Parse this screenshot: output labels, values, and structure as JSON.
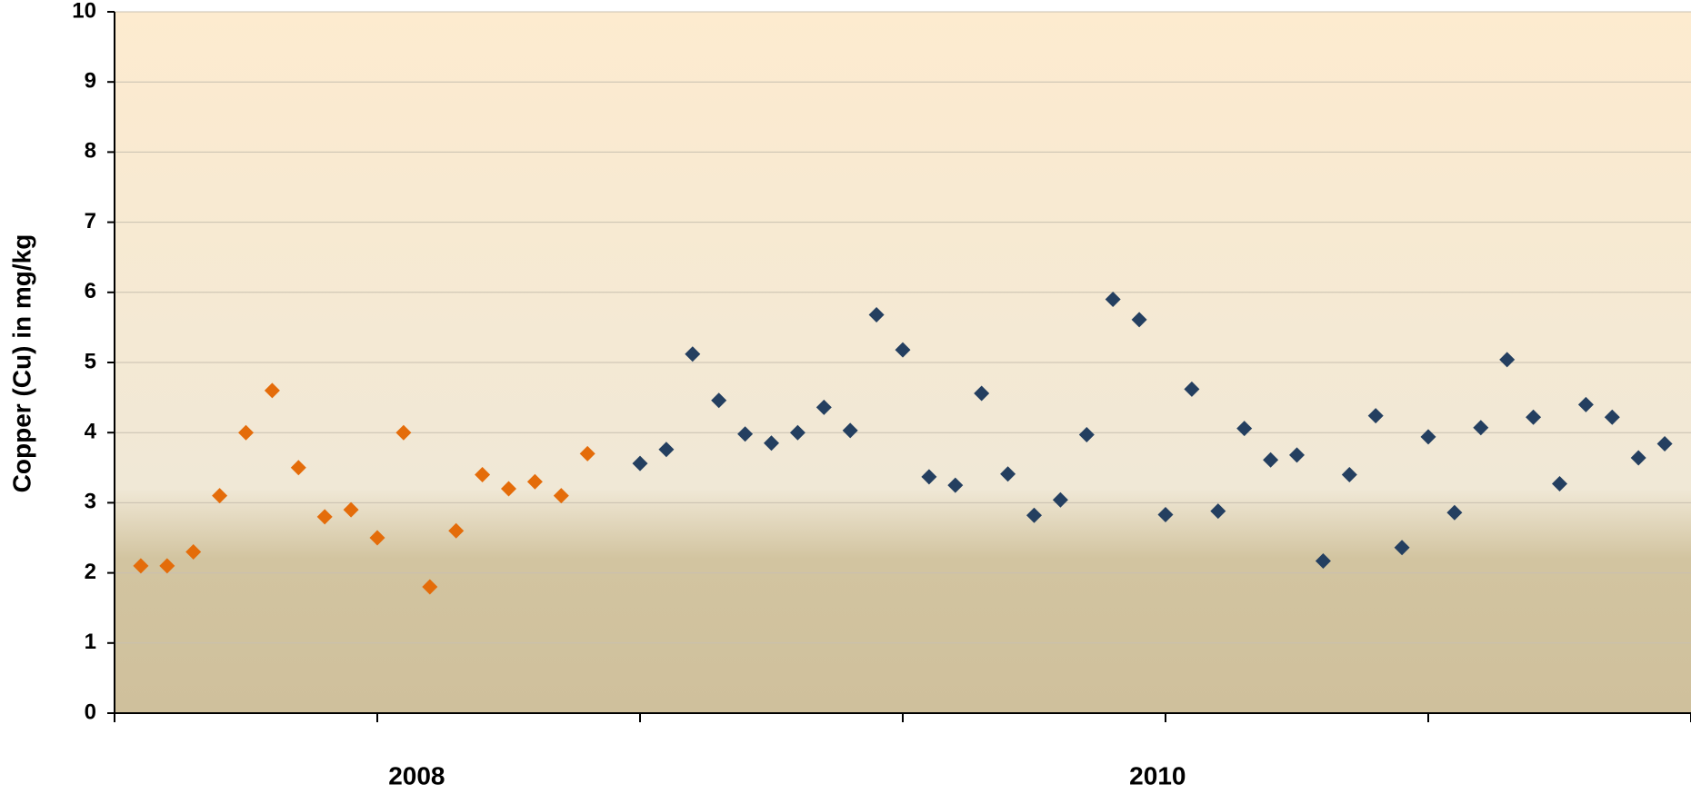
{
  "chart_data": {
    "type": "scatter",
    "ylabel": "Copper (Cu) in mg/kg",
    "xlim": [
      0,
      60
    ],
    "ylim": [
      0,
      10
    ],
    "yticks": [
      0,
      1,
      2,
      3,
      4,
      5,
      6,
      7,
      8,
      9,
      10
    ],
    "xticks": [
      0,
      10,
      20,
      30,
      40,
      50,
      60
    ],
    "xtick_labels": [
      {
        "value": 11.5,
        "label": "2008"
      },
      {
        "value": 39.7,
        "label": "2010"
      }
    ],
    "grid": true,
    "series": [
      {
        "color": "#e46c0a",
        "x": [
          1,
          2,
          3,
          4,
          5,
          6,
          7,
          8,
          9,
          10,
          11,
          12,
          13,
          14,
          15,
          16,
          17,
          18
        ],
        "values": [
          2.1,
          2.1,
          2.3,
          3.1,
          4.0,
          4.6,
          3.5,
          2.8,
          2.9,
          2.5,
          4.0,
          1.8,
          2.6,
          3.4,
          3.2,
          3.3,
          3.1,
          3.7
        ]
      },
      {
        "color": "#243f60",
        "x": [
          20,
          21,
          22,
          23,
          24,
          25,
          26,
          27,
          28,
          29,
          30,
          31,
          32,
          33,
          34,
          35,
          36,
          37,
          38,
          39,
          40,
          41,
          42,
          43,
          44,
          45,
          46,
          47,
          48,
          49,
          50,
          51,
          52,
          53,
          54,
          55,
          56,
          57,
          58,
          59
        ],
        "values": [
          3.56,
          3.76,
          5.12,
          4.46,
          3.98,
          3.85,
          4.0,
          4.36,
          4.03,
          5.68,
          5.18,
          3.37,
          3.25,
          4.56,
          3.41,
          2.82,
          3.04,
          3.97,
          5.9,
          5.61,
          2.83,
          4.62,
          2.88,
          4.06,
          3.61,
          3.68,
          2.17,
          3.4,
          4.24,
          2.36,
          3.94,
          2.86,
          4.07,
          5.04,
          4.22,
          3.27,
          4.4,
          4.22,
          3.64,
          3.84
        ]
      }
    ]
  }
}
